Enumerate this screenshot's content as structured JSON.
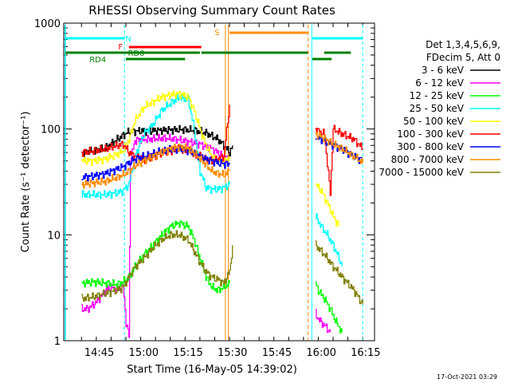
{
  "chart_data": {
    "type": "line",
    "title": "RHESSI Observing Summary Count Rates",
    "xlabel": "Start Time (16-May-05 14:39:02)",
    "ylabel": "Count Rate (s⁻¹ detector⁻¹)",
    "yscale": "log",
    "ylim": [
      1,
      1000
    ],
    "xlim_min": [
      0,
      95
    ],
    "x_unit": "minutes since 14:39:02 start time",
    "x_ticks": [
      {
        "label": "14:45",
        "min": 6
      },
      {
        "label": "15:00",
        "min": 21
      },
      {
        "label": "15:15",
        "min": 36
      },
      {
        "label": "15:30",
        "min": 51
      },
      {
        "label": "15:45",
        "min": 66
      },
      {
        "label": "16:00",
        "min": 81
      },
      {
        "label": "16:15",
        "min": 96
      }
    ],
    "y_ticks": [
      {
        "label": "1",
        "v": 1
      },
      {
        "label": "10",
        "v": 10
      },
      {
        "label": "100",
        "v": 100
      },
      {
        "label": "1000",
        "v": 1000
      }
    ],
    "legend": {
      "header": [
        "Det 1,3,4,5,6,9,",
        "FDecim 5, Att 0"
      ],
      "placement": "right"
    },
    "series": [
      {
        "name": "3 - 6 keV",
        "color": "#000000",
        "points": [
          [
            0,
            60
          ],
          [
            4,
            62
          ],
          [
            8,
            66
          ],
          [
            12,
            80
          ],
          [
            16,
            95
          ],
          [
            20,
            96
          ],
          [
            26,
            97
          ],
          [
            30,
            98
          ],
          [
            34,
            99
          ],
          [
            38,
            97
          ],
          [
            42,
            92
          ],
          [
            46,
            80
          ],
          [
            48,
            70
          ],
          [
            50,
            60
          ],
          [
            51,
            70
          ]
        ],
        "points2": [
          [
            79,
            null
          ]
        ]
      },
      {
        "name": "6 - 12 keV",
        "color": "#ff00ff",
        "points": [
          [
            0,
            2
          ],
          [
            2,
            2
          ],
          [
            4,
            2.2
          ],
          [
            6,
            2.5
          ],
          [
            8,
            3
          ],
          [
            10,
            3.2
          ],
          [
            12,
            3
          ],
          [
            14,
            3.3
          ],
          [
            15,
            1.5
          ],
          [
            16,
            1.1
          ],
          [
            16.5,
            50
          ],
          [
            18,
            78
          ],
          [
            22,
            80
          ],
          [
            28,
            82
          ],
          [
            32,
            80
          ],
          [
            36,
            76
          ],
          [
            40,
            72
          ],
          [
            44,
            65
          ],
          [
            48,
            55
          ],
          [
            50,
            50
          ]
        ],
        "points2": [
          [
            79,
            1.8
          ],
          [
            80,
            1.6
          ],
          [
            82,
            1.4
          ],
          [
            84,
            1.2
          ]
        ]
      },
      {
        "name": "12 - 25 keV",
        "color": "#00ff00",
        "points": [
          [
            0,
            3.5
          ],
          [
            4,
            3.6
          ],
          [
            8,
            3.5
          ],
          [
            12,
            3.4
          ],
          [
            14,
            3.6
          ],
          [
            16,
            4
          ],
          [
            18,
            5
          ],
          [
            21,
            6.5
          ],
          [
            24,
            8
          ],
          [
            27,
            10
          ],
          [
            30,
            12
          ],
          [
            33,
            13
          ],
          [
            36,
            12
          ],
          [
            38,
            9
          ],
          [
            40,
            6
          ],
          [
            42,
            4
          ],
          [
            44,
            3.2
          ],
          [
            46,
            3
          ],
          [
            48,
            3.2
          ],
          [
            50,
            3.5
          ]
        ],
        "points2": [
          [
            79,
            3.5
          ],
          [
            80,
            3
          ],
          [
            82,
            2.5
          ],
          [
            84,
            2
          ],
          [
            86,
            1.5
          ],
          [
            88,
            1.2
          ]
        ]
      },
      {
        "name": "25 - 50 keV",
        "color": "#00ffff",
        "points": [
          [
            0,
            24
          ],
          [
            4,
            24
          ],
          [
            8,
            24
          ],
          [
            12,
            25
          ],
          [
            14,
            26
          ],
          [
            16,
            30
          ],
          [
            18,
            55
          ],
          [
            21,
            90
          ],
          [
            24,
            110
          ],
          [
            27,
            150
          ],
          [
            30,
            175
          ],
          [
            33,
            200
          ],
          [
            36,
            190
          ],
          [
            38,
            100
          ],
          [
            40,
            40
          ],
          [
            42,
            28
          ],
          [
            44,
            27
          ],
          [
            46,
            27
          ],
          [
            48,
            28
          ],
          [
            50,
            30
          ]
        ],
        "points2": [
          [
            79,
            15
          ],
          [
            81,
            12
          ],
          [
            83,
            10
          ],
          [
            85,
            8
          ],
          [
            87,
            6
          ],
          [
            88,
            5
          ]
        ]
      },
      {
        "name": "50 - 100 keV",
        "color": "#ffff00",
        "points": [
          [
            0,
            50
          ],
          [
            4,
            50
          ],
          [
            8,
            52
          ],
          [
            12,
            58
          ],
          [
            14,
            62
          ],
          [
            16,
            80
          ],
          [
            18,
            120
          ],
          [
            21,
            160
          ],
          [
            24,
            180
          ],
          [
            27,
            200
          ],
          [
            30,
            210
          ],
          [
            33,
            215
          ],
          [
            36,
            200
          ],
          [
            38,
            150
          ],
          [
            40,
            100
          ],
          [
            42,
            70
          ],
          [
            44,
            55
          ],
          [
            46,
            50
          ],
          [
            48,
            48
          ],
          [
            50,
            55
          ]
        ],
        "points2": [
          [
            79,
            30
          ],
          [
            81,
            26
          ],
          [
            83,
            20
          ],
          [
            85,
            15
          ],
          [
            87,
            12
          ]
        ]
      },
      {
        "name": "100 - 300 keV",
        "color": "#ff0000",
        "points": [
          [
            0,
            60
          ],
          [
            4,
            62
          ],
          [
            8,
            65
          ],
          [
            12,
            70
          ],
          [
            14,
            72
          ],
          [
            16,
            60
          ],
          [
            18,
            55
          ],
          [
            21,
            52
          ],
          [
            24,
            55
          ],
          [
            27,
            60
          ],
          [
            30,
            62
          ],
          [
            33,
            65
          ],
          [
            36,
            62
          ],
          [
            38,
            58
          ],
          [
            40,
            55
          ],
          [
            42,
            52
          ],
          [
            44,
            50
          ],
          [
            46,
            52
          ],
          [
            48,
            55
          ],
          [
            50,
            170
          ]
        ],
        "points2": [
          [
            79,
            100
          ],
          [
            80,
            95
          ],
          [
            82,
            90
          ],
          [
            84,
            25
          ],
          [
            85,
            100
          ],
          [
            88,
            90
          ],
          [
            92,
            80
          ],
          [
            95,
            65
          ]
        ]
      },
      {
        "name": "300 - 800 keV",
        "color": "#0000ff",
        "points": [
          [
            0,
            35
          ],
          [
            4,
            36
          ],
          [
            8,
            38
          ],
          [
            12,
            42
          ],
          [
            14,
            44
          ],
          [
            16,
            48
          ],
          [
            18,
            52
          ],
          [
            21,
            55
          ],
          [
            24,
            58
          ],
          [
            27,
            62
          ],
          [
            30,
            64
          ],
          [
            33,
            65
          ],
          [
            36,
            63
          ],
          [
            38,
            60
          ],
          [
            40,
            55
          ],
          [
            42,
            52
          ],
          [
            44,
            50
          ],
          [
            46,
            48
          ],
          [
            48,
            47
          ],
          [
            50,
            46
          ]
        ],
        "points2": [
          [
            79,
            85
          ],
          [
            81,
            80
          ],
          [
            83,
            75
          ],
          [
            85,
            70
          ],
          [
            88,
            65
          ],
          [
            92,
            55
          ],
          [
            95,
            50
          ]
        ]
      },
      {
        "name": "800 - 7000 keV",
        "color": "#ff8c00",
        "points": [
          [
            0,
            30
          ],
          [
            4,
            31
          ],
          [
            8,
            32
          ],
          [
            12,
            35
          ],
          [
            14,
            37
          ],
          [
            16,
            40
          ],
          [
            18,
            45
          ],
          [
            21,
            50
          ],
          [
            24,
            55
          ],
          [
            27,
            60
          ],
          [
            30,
            65
          ],
          [
            33,
            68
          ],
          [
            36,
            66
          ],
          [
            38,
            60
          ],
          [
            40,
            52
          ],
          [
            42,
            46
          ],
          [
            44,
            40
          ],
          [
            46,
            38
          ],
          [
            48,
            37
          ],
          [
            50,
            40
          ]
        ],
        "points2": [
          [
            79,
            90
          ],
          [
            81,
            85
          ],
          [
            83,
            78
          ],
          [
            85,
            72
          ],
          [
            88,
            65
          ],
          [
            92,
            55
          ],
          [
            95,
            48
          ]
        ]
      },
      {
        "name": "7000 - 15000 keV",
        "color": "#808000",
        "points": [
          [
            0,
            2.5
          ],
          [
            4,
            2.6
          ],
          [
            8,
            2.8
          ],
          [
            12,
            3
          ],
          [
            14,
            3.2
          ],
          [
            16,
            4
          ],
          [
            18,
            5
          ],
          [
            21,
            6
          ],
          [
            24,
            7.5
          ],
          [
            27,
            9
          ],
          [
            30,
            10
          ],
          [
            33,
            10
          ],
          [
            36,
            9
          ],
          [
            38,
            7
          ],
          [
            40,
            5.5
          ],
          [
            42,
            4.5
          ],
          [
            44,
            4
          ],
          [
            46,
            3.8
          ],
          [
            48,
            3.5
          ],
          [
            50,
            4.5
          ],
          [
            51,
            8
          ]
        ],
        "points2": [
          [
            79,
            8
          ],
          [
            81,
            7
          ],
          [
            83,
            6
          ],
          [
            85,
            5
          ],
          [
            88,
            4
          ],
          [
            92,
            3
          ],
          [
            95,
            2.2
          ]
        ]
      }
    ],
    "annotations": [
      {
        "label": "N",
        "color": "#00ffff"
      },
      {
        "label": "F",
        "color": "#ff0000"
      },
      {
        "label": "RD0",
        "color": "#008000"
      },
      {
        "label": "RD4",
        "color": "#008000"
      },
      {
        "label": "S",
        "color": "#ff8c00"
      }
    ],
    "footer_date": "17-Oct-2021 03:29"
  }
}
